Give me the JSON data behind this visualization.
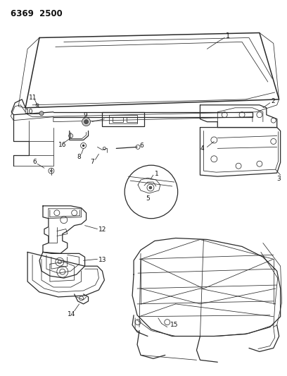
{
  "title_code": "6369  2500",
  "bg_color": "#ffffff",
  "line_color": "#2a2a2a",
  "label_color": "#111111",
  "fig_width": 4.08,
  "fig_height": 5.33,
  "dpi": 100
}
